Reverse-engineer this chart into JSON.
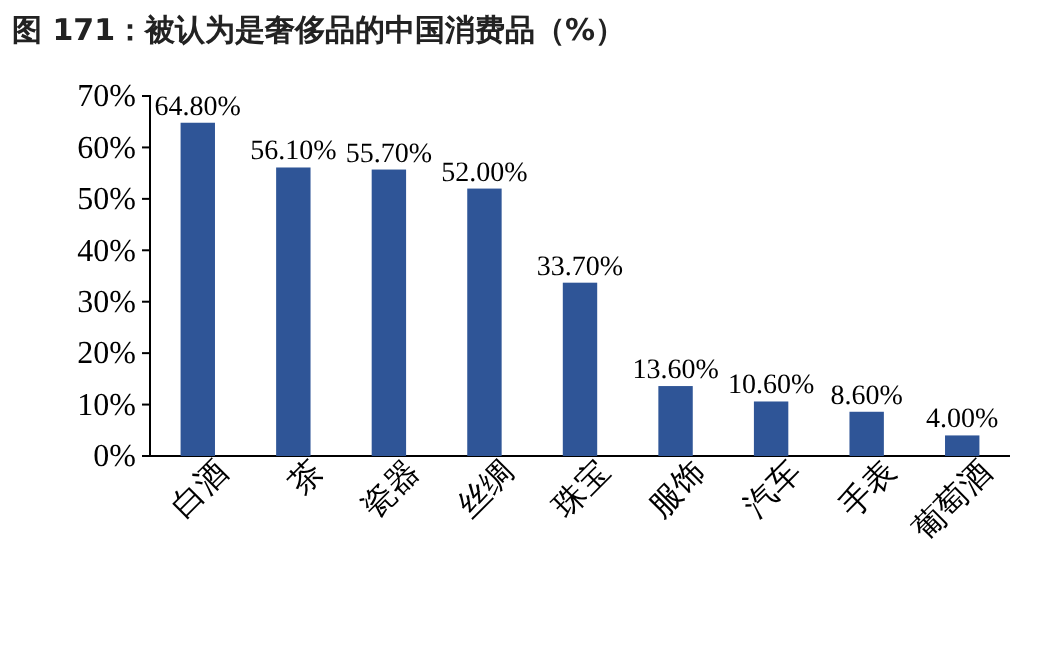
{
  "chart_data": {
    "type": "bar",
    "title": "图 171：被认为是奢侈品的中国消费品（%）",
    "categories": [
      "白酒",
      "茶",
      "瓷器",
      "丝绸",
      "珠宝",
      "服饰",
      "汽车",
      "手表",
      "葡萄酒"
    ],
    "values": [
      64.8,
      56.1,
      55.7,
      52.0,
      33.7,
      13.6,
      10.6,
      8.6,
      4.0
    ],
    "value_labels": [
      "64.80%",
      "56.10%",
      "55.70%",
      "52.00%",
      "33.70%",
      "13.60%",
      "10.60%",
      "8.60%",
      "4.00%"
    ],
    "color": "#2f5597",
    "ylim": [
      0,
      70
    ],
    "yticks": [
      {
        "value": 0,
        "label": "0%"
      },
      {
        "value": 10,
        "label": "10%"
      },
      {
        "value": 20,
        "label": "20%"
      },
      {
        "value": 30,
        "label": "30%"
      },
      {
        "value": 40,
        "label": "40%"
      },
      {
        "value": 50,
        "label": "50%"
      },
      {
        "value": 60,
        "label": "60%"
      },
      {
        "value": 70,
        "label": "70%"
      }
    ]
  }
}
